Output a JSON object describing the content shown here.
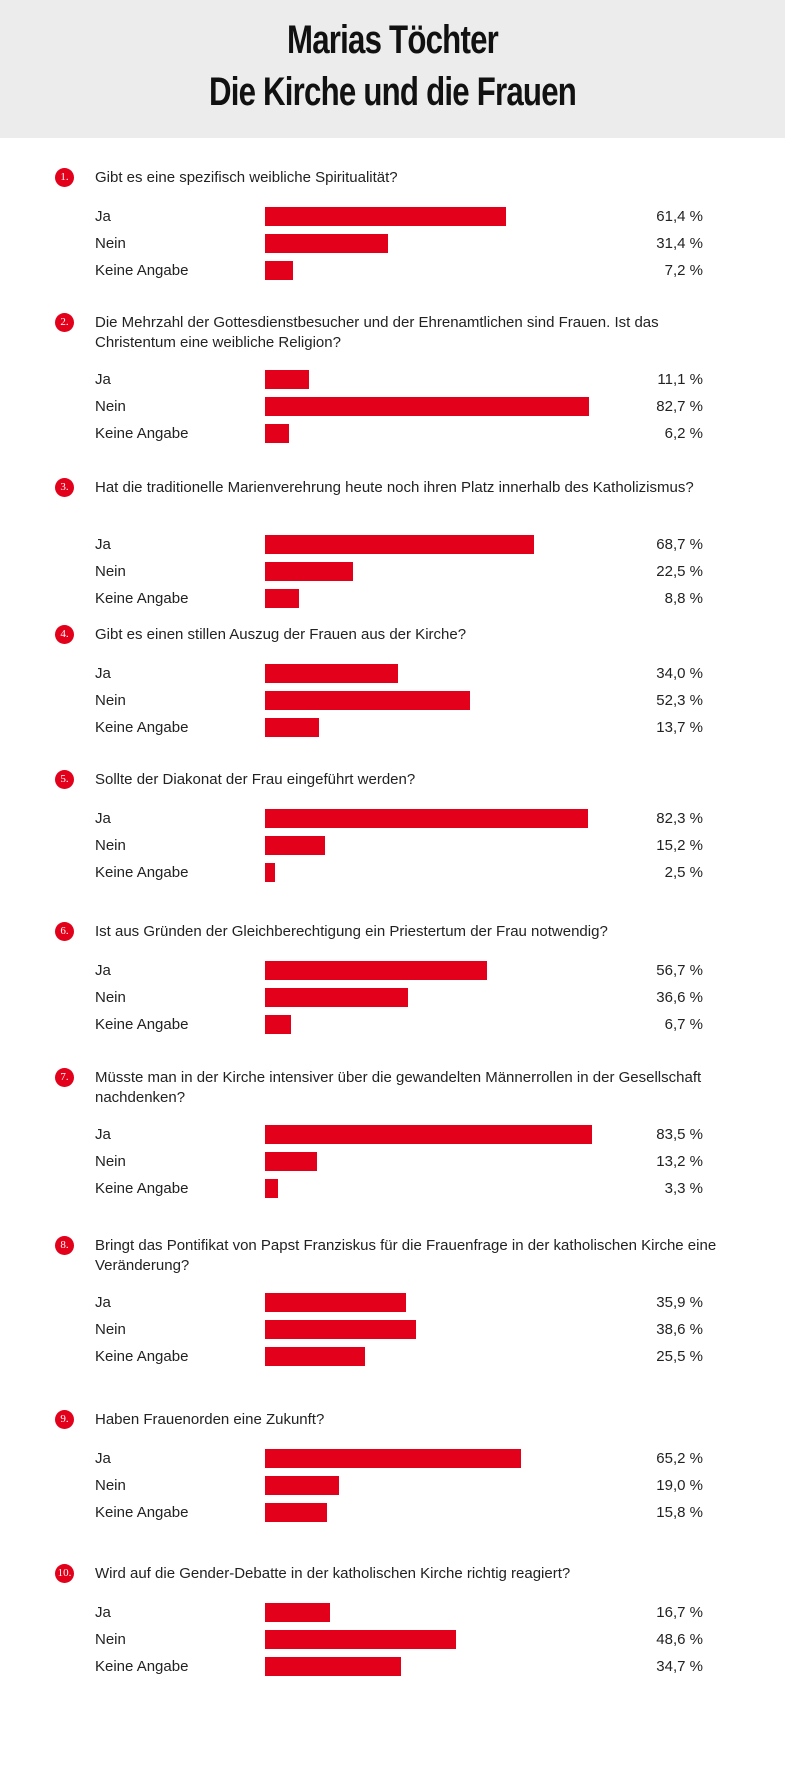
{
  "header": {
    "title_line1": "Marias Töchter",
    "title_line2": "Die Kirche und die Frauen"
  },
  "colors": {
    "bar": "#e2001a",
    "header_bg": "#ececec"
  },
  "chart_data": {
    "type": "bar",
    "orientation": "horizontal",
    "categories": [
      "Ja",
      "Nein",
      "Keine Angabe"
    ],
    "unit": "%",
    "questions": [
      {
        "number": "1.",
        "text": "Gibt es eine spezifisch weibliche Spiritualität?",
        "values": [
          61.4,
          31.4,
          7.2
        ],
        "labels": [
          "61,4 %",
          "31,4 %",
          "7,2 %"
        ]
      },
      {
        "number": "2.",
        "text": "Die Mehrzahl der Gottesdienstbesucher und der Ehrenamtlichen sind Frauen. Ist das Christentum eine weibliche Religion?",
        "values": [
          11.1,
          82.7,
          6.2
        ],
        "labels": [
          "11,1 %",
          "82,7 %",
          "6,2 %"
        ]
      },
      {
        "number": "3.",
        "text": "Hat die traditionelle Marienverehrung heute noch ihren Platz innerhalb des Katholizismus?",
        "values": [
          68.7,
          22.5,
          8.8
        ],
        "labels": [
          "68,7 %",
          "22,5 %",
          "8,8 %"
        ]
      },
      {
        "number": "4.",
        "text": "Gibt es einen stillen Auszug der Frauen aus der Kirche?",
        "values": [
          34.0,
          52.3,
          13.7
        ],
        "labels": [
          "34,0 %",
          "52,3 %",
          "13,7 %"
        ]
      },
      {
        "number": "5.",
        "text": "Sollte der Diakonat der Frau eingeführt werden?",
        "values": [
          82.3,
          15.2,
          2.5
        ],
        "labels": [
          "82,3 %",
          "15,2 %",
          "2,5 %"
        ]
      },
      {
        "number": "6.",
        "text": "Ist aus Gründen der Gleichberechtigung ein Priestertum der Frau notwendig?",
        "values": [
          56.7,
          36.6,
          6.7
        ],
        "labels": [
          "56,7 %",
          "36,6 %",
          "6,7 %"
        ]
      },
      {
        "number": "7.",
        "text": "Müsste man in der Kirche intensiver über die gewandelten Männerrollen in der Gesellschaft nachdenken?",
        "values": [
          83.5,
          13.2,
          3.3
        ],
        "labels": [
          "83,5 %",
          "13,2 %",
          "3,3 %"
        ]
      },
      {
        "number": "8.",
        "text": "Bringt das Pontifikat von Papst Franziskus für die Frauenfrage in der katholischen Kirche eine Veränderung?",
        "values": [
          35.9,
          38.6,
          25.5
        ],
        "labels": [
          "35,9 %",
          "38,6 %",
          "25,5 %"
        ]
      },
      {
        "number": "9.",
        "text": "Haben Frauenorden eine Zukunft?",
        "values": [
          65.2,
          19.0,
          15.8
        ],
        "labels": [
          "65,2 %",
          "19,0 %",
          "15,8 %"
        ]
      },
      {
        "number": "10.",
        "text": "Wird auf die Gender-Debatte in der katholischen Kirche richtig reagiert?",
        "values": [
          16.7,
          48.6,
          34.7
        ],
        "labels": [
          "16,7 %",
          "48,6 %",
          "34,7 %"
        ]
      }
    ]
  }
}
